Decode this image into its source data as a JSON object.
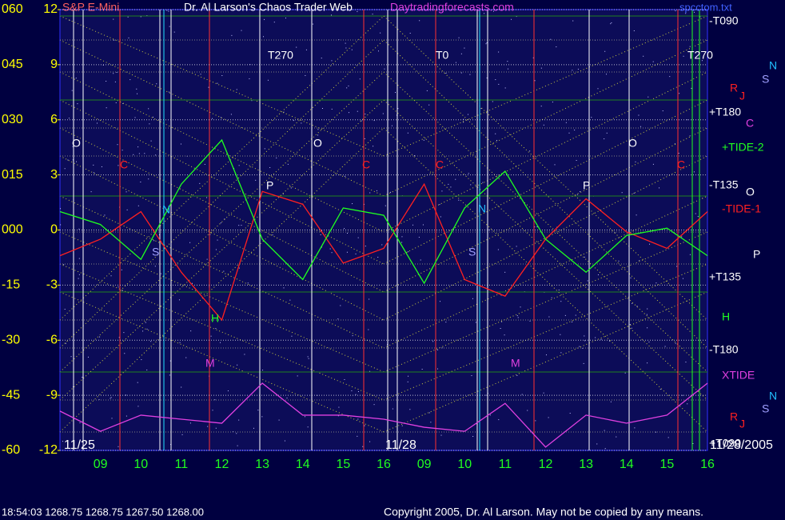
{
  "chart_data": {
    "type": "line",
    "title": "Dr. Al Larson's Chaos Trader Web",
    "subtitle": "S&P E-Mini",
    "site": "Daytradingforecasts.com",
    "file": "spcctom.txt",
    "status": "18:54:03  1268.75 1268.75 1267.50 1268.00",
    "copyright": "Copyright 2005, Dr. Al Larson. May not be copied by any means.",
    "categories": [
      null,
      "09",
      "10",
      "11",
      "12",
      "13",
      "14",
      "15",
      "16",
      "09",
      "10",
      "11",
      "12",
      "13",
      "14",
      "15",
      "16"
    ],
    "ylim": [
      -12,
      12
    ],
    "yticks": [
      12,
      9,
      6,
      3,
      0,
      -3,
      -6,
      -9,
      -12
    ],
    "y2lim": [
      -60,
      60
    ],
    "y2ticks": [
      {
        "value": 60,
        "label": "060"
      },
      {
        "value": 45,
        "label": "045"
      },
      {
        "value": 30,
        "label": "030"
      },
      {
        "value": 15,
        "label": "015"
      },
      {
        "value": 0,
        "label": "000"
      },
      -15,
      -30,
      -45,
      -60
    ],
    "grid": true,
    "series": [
      {
        "name": "-TIDE-1",
        "color": "#ff2020",
        "values": [
          -1.4,
          -0.5,
          1.0,
          -2.3,
          -4.9,
          2.1,
          1.4,
          -1.8,
          -1.0,
          2.5,
          -2.7,
          -3.6,
          -0.5,
          1.7,
          -0.1,
          -1.0,
          1.0
        ]
      },
      {
        "name": "+TIDE-2",
        "color": "#20ff20",
        "values": [
          1.0,
          0.3,
          -1.6,
          2.5,
          4.9,
          -0.5,
          -2.7,
          1.2,
          0.8,
          -2.9,
          1.2,
          3.2,
          -0.5,
          -2.3,
          -0.3,
          0.1,
          -1.4
        ]
      },
      {
        "name": "XTIDE",
        "color": "#e040e0",
        "axis": "y2",
        "values": [
          -49.3,
          -54.8,
          -50.4,
          -51.5,
          -52.6,
          -41.7,
          -50.4,
          -50.4,
          -51.5,
          -53.7,
          -54.8,
          -47.2,
          -59.1,
          -50.4,
          -52.6,
          -50.4,
          -41.7
        ]
      }
    ],
    "annotations": [
      {
        "text": "11/25",
        "color": "#ffffff"
      },
      {
        "text": "11/28",
        "color": "#ffffff"
      },
      {
        "text": "11/28/2005",
        "color": "#ffffff"
      },
      {
        "text": "T270",
        "color": "#ffffff"
      },
      {
        "text": "T0",
        "color": "#ffffff"
      },
      {
        "text": "T270",
        "color": "#ffffff"
      },
      {
        "text": "-T090",
        "color": "#ffffff"
      },
      {
        "text": "+T180",
        "color": "#ffffff"
      },
      {
        "text": "-T135",
        "color": "#ffffff"
      },
      {
        "text": "+T135",
        "color": "#ffffff"
      },
      {
        "text": "-T180",
        "color": "#ffffff"
      },
      {
        "text": "+T090",
        "color": "#ffffff"
      },
      {
        "text": "N",
        "color": "#20c0ff"
      },
      {
        "text": "S",
        "color": "#a0a0ff"
      },
      {
        "text": "R",
        "color": "#ff2020"
      },
      {
        "text": "J",
        "color": "#ff2020"
      },
      {
        "text": "C",
        "color": "#e040e0"
      },
      {
        "text": "O",
        "color": "#ffffff"
      },
      {
        "text": "P",
        "color": "#ffffff"
      },
      {
        "text": "H",
        "color": "#20ff20"
      },
      {
        "text": "N",
        "color": "#20c0ff"
      },
      {
        "text": "S",
        "color": "#a0a0ff"
      },
      {
        "text": "R",
        "color": "#ff2020"
      },
      {
        "text": "J",
        "color": "#ff2020"
      },
      {
        "text": "O",
        "color": "#ffffff"
      },
      {
        "text": "O",
        "color": "#ffffff"
      },
      {
        "text": "O",
        "color": "#ffffff"
      },
      {
        "text": "P",
        "color": "#ffffff"
      },
      {
        "text": "P",
        "color": "#ffffff"
      },
      {
        "text": "N",
        "color": "#20c0ff"
      },
      {
        "text": "N",
        "color": "#20c0ff"
      },
      {
        "text": "S",
        "color": "#a0a0ff"
      },
      {
        "text": "S",
        "color": "#a0a0ff"
      },
      {
        "text": "H",
        "color": "#20ff20"
      },
      {
        "text": "M",
        "color": "#e040e0"
      },
      {
        "text": "M",
        "color": "#e040e0"
      },
      {
        "text": "C",
        "color": "#ff2020"
      },
      {
        "text": "C",
        "color": "#ff2020"
      },
      {
        "text": "C",
        "color": "#ff2020"
      },
      {
        "text": "C",
        "color": "#ff2020"
      }
    ]
  }
}
